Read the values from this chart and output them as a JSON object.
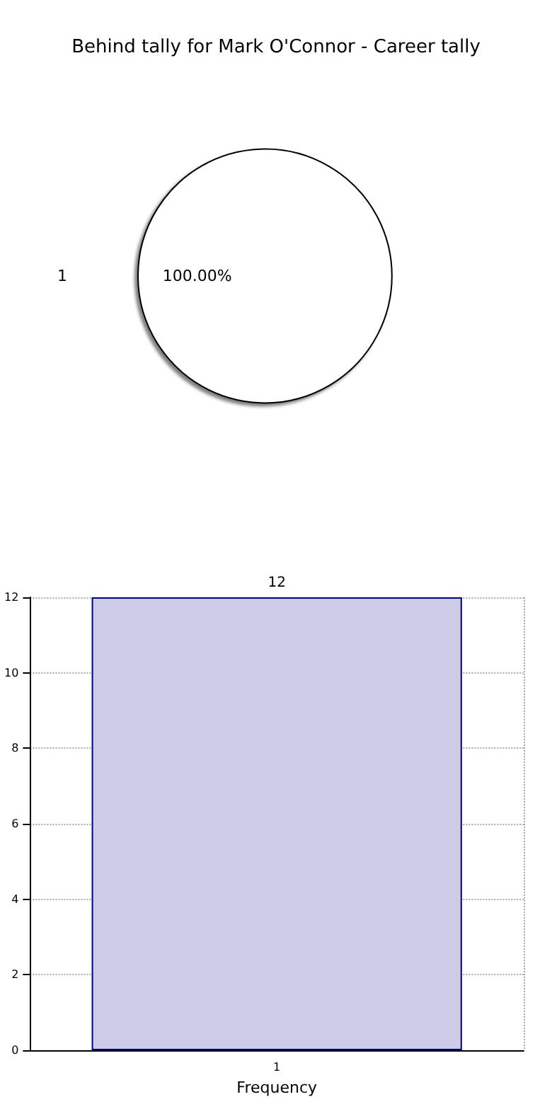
{
  "chart_data": [
    {
      "type": "pie",
      "title": "Behind tally for Mark O'Connor - Career tally",
      "categories": [
        "1"
      ],
      "values": [
        100
      ],
      "colors": [
        "#ffffff"
      ],
      "value_labels": [
        "100.00%"
      ]
    },
    {
      "type": "bar",
      "categories": [
        "1"
      ],
      "values": [
        12
      ],
      "color": "#cccce6",
      "ylim": [
        0,
        12
      ],
      "yticks": [
        0,
        2,
        4,
        6,
        8,
        10,
        12
      ],
      "xlabel": "Frequency",
      "grid": true,
      "data_labels": true
    }
  ]
}
